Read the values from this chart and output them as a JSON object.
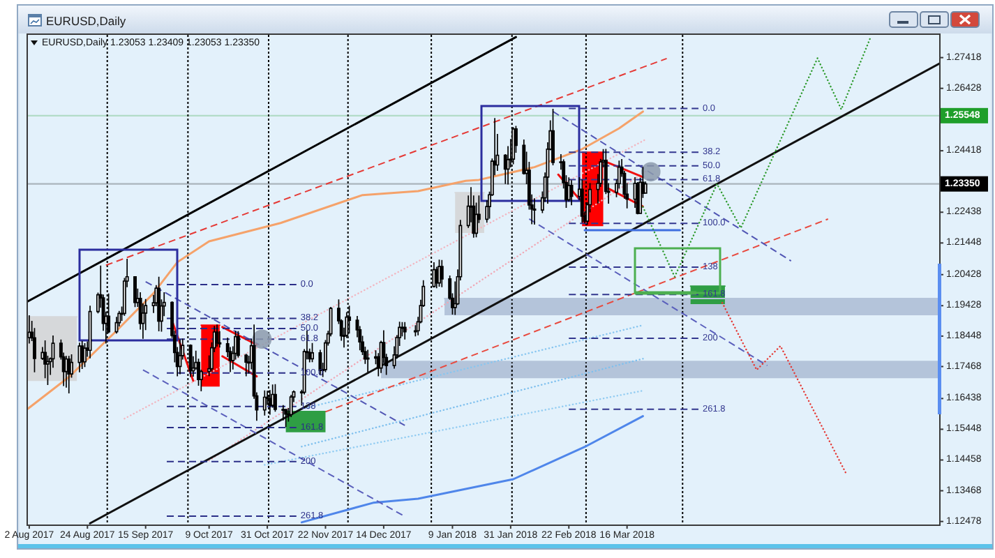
{
  "chart_data": {
    "type": "candlestick",
    "title": "EURUSD,Daily",
    "subtitle": "EURUSD,Daily 1.23053 1.23409 1.23053 1.23350",
    "xlim": [
      "2017-08-01T12:00",
      "2018-07-12"
    ],
    "xticks": [
      {
        "value": "2017-08-02",
        "label": "2 Aug 2017"
      },
      {
        "value": "2017-08-24",
        "label": "24 Aug 2017"
      },
      {
        "value": "2017-09-15",
        "label": "15 Sep 2017"
      },
      {
        "value": "2017-10-09",
        "label": "9 Oct 2017"
      },
      {
        "value": "2017-10-31",
        "label": "31 Oct 2017"
      },
      {
        "value": "2017-11-22",
        "label": "22 Nov 2017"
      },
      {
        "value": "2017-12-14",
        "label": "14 Dec 2017"
      },
      {
        "value": "2018-01-09",
        "label": "9 Jan 2018"
      },
      {
        "value": "2018-01-31",
        "label": "31 Jan 2018"
      },
      {
        "value": "2018-02-22",
        "label": "22 Feb 2018"
      },
      {
        "value": "2018-03-16",
        "label": "16 Mar 2018"
      }
    ],
    "ylim": [
      1.1238,
      1.2815
    ],
    "yticks": [
      1.12478,
      1.13468,
      1.14458,
      1.15448,
      1.16438,
      1.17468,
      1.18448,
      1.19428,
      1.20428,
      1.21448,
      1.22438,
      1.24418,
      1.26428,
      1.27418
    ],
    "ref_lines": [
      {
        "axis": "y",
        "value": 1.25548,
        "label": "1.25548",
        "color": "#1f9e2a"
      },
      {
        "axis": "y",
        "value": 1.2335,
        "label": "1.23350",
        "color": "#000000"
      },
      {
        "axis": "x",
        "value": "2017-08-31T12:00",
        "color": "#000000",
        "line_style": "dotted"
      },
      {
        "axis": "x",
        "value": "2017-10-01",
        "color": "#000000",
        "line_style": "dotted"
      },
      {
        "axis": "x",
        "value": "2017-10-31T12:00",
        "color": "#000000",
        "line_style": "dotted"
      },
      {
        "axis": "x",
        "value": "2017-11-30T12:00",
        "color": "#000000",
        "line_style": "dotted"
      },
      {
        "axis": "x",
        "value": "2018-01-01",
        "color": "#000000",
        "line_style": "dotted"
      },
      {
        "axis": "x",
        "value": "2018-01-31T12:00",
        "color": "#000000",
        "line_style": "dotted"
      },
      {
        "axis": "x",
        "value": "2018-02-28T12:00",
        "color": "#000000",
        "line_style": "dotted"
      },
      {
        "axis": "x",
        "value": "2018-04-06",
        "color": "#000000",
        "line_style": "dotted"
      }
    ],
    "x": [
      "2017-08-02",
      "2017-08-03",
      "2017-08-04",
      "2017-08-07",
      "2017-08-08",
      "2017-08-09",
      "2017-08-10",
      "2017-08-11",
      "2017-08-14",
      "2017-08-15",
      "2017-08-16",
      "2017-08-17",
      "2017-08-18",
      "2017-08-21",
      "2017-08-22",
      "2017-08-23",
      "2017-08-24",
      "2017-08-25",
      "2017-08-28",
      "2017-08-29",
      "2017-08-30",
      "2017-08-31",
      "2017-09-01",
      "2017-09-04",
      "2017-09-05",
      "2017-09-06",
      "2017-09-07",
      "2017-09-08",
      "2017-09-11",
      "2017-09-12",
      "2017-09-13",
      "2017-09-14",
      "2017-09-15",
      "2017-09-18",
      "2017-09-19",
      "2017-09-20",
      "2017-09-21",
      "2017-09-22",
      "2017-09-25",
      "2017-09-26",
      "2017-09-27",
      "2017-09-28",
      "2017-09-29",
      "2017-10-02",
      "2017-10-03",
      "2017-10-04",
      "2017-10-05",
      "2017-10-06",
      "2017-10-09",
      "2017-10-10",
      "2017-10-11",
      "2017-10-12",
      "2017-10-13",
      "2017-10-16",
      "2017-10-17",
      "2017-10-18",
      "2017-10-19",
      "2017-10-20",
      "2017-10-23",
      "2017-10-24",
      "2017-10-25",
      "2017-10-26",
      "2017-10-27",
      "2017-10-30",
      "2017-10-31",
      "2017-11-01",
      "2017-11-02",
      "2017-11-03",
      "2017-11-06",
      "2017-11-07",
      "2017-11-08",
      "2017-11-09",
      "2017-11-10",
      "2017-11-13",
      "2017-11-14",
      "2017-11-15",
      "2017-11-16",
      "2017-11-17",
      "2017-11-20",
      "2017-11-21",
      "2017-11-22",
      "2017-11-23",
      "2017-11-24",
      "2017-11-27",
      "2017-11-28",
      "2017-11-29",
      "2017-11-30",
      "2017-12-01",
      "2017-12-04",
      "2017-12-05",
      "2017-12-06",
      "2017-12-07",
      "2017-12-08",
      "2017-12-11",
      "2017-12-12",
      "2017-12-13",
      "2017-12-14",
      "2017-12-15",
      "2017-12-18",
      "2017-12-19",
      "2017-12-20",
      "2017-12-21",
      "2017-12-22",
      "2017-12-26",
      "2017-12-27",
      "2017-12-28",
      "2017-12-29",
      "2018-01-02",
      "2018-01-03",
      "2018-01-04",
      "2018-01-05",
      "2018-01-08",
      "2018-01-09",
      "2018-01-10",
      "2018-01-11",
      "2018-01-12",
      "2018-01-15",
      "2018-01-16",
      "2018-01-17",
      "2018-01-18",
      "2018-01-19",
      "2018-01-22",
      "2018-01-23",
      "2018-01-24",
      "2018-01-25",
      "2018-01-26",
      "2018-01-29",
      "2018-01-30",
      "2018-01-31",
      "2018-02-01",
      "2018-02-02",
      "2018-02-05",
      "2018-02-06",
      "2018-02-07",
      "2018-02-08",
      "2018-02-09",
      "2018-02-12",
      "2018-02-13",
      "2018-02-14",
      "2018-02-15",
      "2018-02-16",
      "2018-02-19",
      "2018-02-20",
      "2018-02-21",
      "2018-02-22",
      "2018-02-23",
      "2018-02-26",
      "2018-02-27",
      "2018-02-28",
      "2018-03-01",
      "2018-03-02",
      "2018-03-05",
      "2018-03-06",
      "2018-03-07",
      "2018-03-08",
      "2018-03-09",
      "2018-03-12",
      "2018-03-13",
      "2018-03-14",
      "2018-03-15",
      "2018-03-16",
      "2018-03-19",
      "2018-03-20",
      "2018-03-21",
      "2018-03-22",
      "2018-03-23"
    ],
    "ohlc": [
      [
        1.184,
        1.191,
        1.1823,
        1.1857
      ],
      [
        1.1857,
        1.1892,
        1.1831,
        1.1839
      ],
      [
        1.1839,
        1.1869,
        1.173,
        1.1773
      ],
      [
        1.1773,
        1.1808,
        1.177,
        1.1792
      ],
      [
        1.1792,
        1.1829,
        1.1711,
        1.1755
      ],
      [
        1.1755,
        1.178,
        1.1689,
        1.1763
      ],
      [
        1.1763,
        1.1774,
        1.1722,
        1.1772
      ],
      [
        1.1772,
        1.1845,
        1.1745,
        1.1822
      ],
      [
        1.1822,
        1.1832,
        1.1771,
        1.1778
      ],
      [
        1.1778,
        1.179,
        1.1686,
        1.1731
      ],
      [
        1.1731,
        1.1779,
        1.1681,
        1.1771
      ],
      [
        1.1771,
        1.1779,
        1.1662,
        1.1723
      ],
      [
        1.1723,
        1.1784,
        1.1713,
        1.176
      ],
      [
        1.176,
        1.1822,
        1.173,
        1.1813
      ],
      [
        1.1813,
        1.1827,
        1.1741,
        1.1762
      ],
      [
        1.1762,
        1.182,
        1.1747,
        1.1806
      ],
      [
        1.1806,
        1.1826,
        1.178,
        1.1799
      ],
      [
        1.1799,
        1.1941,
        1.1775,
        1.1924
      ],
      [
        1.1924,
        1.1983,
        1.192,
        1.1978
      ],
      [
        1.1978,
        1.207,
        1.1938,
        1.1968
      ],
      [
        1.1968,
        1.1977,
        1.1864,
        1.1886
      ],
      [
        1.1886,
        1.1922,
        1.1823,
        1.1909
      ],
      [
        1.1909,
        1.198,
        1.1856,
        1.1859
      ],
      [
        1.1859,
        1.1905,
        1.1855,
        1.1888
      ],
      [
        1.1888,
        1.1924,
        1.1878,
        1.1918
      ],
      [
        1.1918,
        1.1938,
        1.1896,
        1.1918
      ],
      [
        1.1918,
        1.203,
        1.1912,
        1.2022
      ],
      [
        1.2022,
        1.2092,
        1.2004,
        1.2036
      ],
      [
        1.2036,
        1.2036,
        1.194,
        1.1953
      ],
      [
        1.1953,
        1.1996,
        1.1941,
        1.1966
      ],
      [
        1.1966,
        1.1984,
        1.1868,
        1.1886
      ],
      [
        1.1886,
        1.1948,
        1.1838,
        1.1919
      ],
      [
        1.1919,
        1.1962,
        1.1866,
        1.1943
      ],
      [
        1.1943,
        1.1976,
        1.1921,
        1.1952
      ],
      [
        1.1952,
        1.2007,
        1.1943,
        1.1999
      ],
      [
        1.1999,
        1.2034,
        1.1862,
        1.1893
      ],
      [
        1.1893,
        1.1961,
        1.1861,
        1.1942
      ],
      [
        1.1942,
        1.1984,
        1.1911,
        1.1953
      ],
      [
        1.1953,
        1.1955,
        1.1841,
        1.1847
      ],
      [
        1.1847,
        1.186,
        1.1762,
        1.1792
      ],
      [
        1.1792,
        1.1808,
        1.1717,
        1.1747
      ],
      [
        1.1747,
        1.1832,
        1.1724,
        1.1782
      ],
      [
        1.1782,
        1.1835,
        1.1771,
        1.1815
      ],
      [
        1.1815,
        1.1816,
        1.1715,
        1.1733
      ],
      [
        1.1733,
        1.1778,
        1.1716,
        1.1742
      ],
      [
        1.1742,
        1.1796,
        1.1738,
        1.176
      ],
      [
        1.176,
        1.177,
        1.1687,
        1.1705
      ],
      [
        1.1705,
        1.1735,
        1.1669,
        1.1731
      ],
      [
        1.1731,
        1.1781,
        1.1718,
        1.174
      ],
      [
        1.174,
        1.1823,
        1.1733,
        1.1807
      ],
      [
        1.1807,
        1.1876,
        1.1795,
        1.1858
      ],
      [
        1.1858,
        1.188,
        1.1813,
        1.1823
      ],
      [
        1.1823,
        1.1859,
        1.181,
        1.182
      ],
      [
        1.182,
        1.1838,
        1.1779,
        1.1795
      ],
      [
        1.1795,
        1.1808,
        1.1731,
        1.1766
      ],
      [
        1.1766,
        1.181,
        1.1739,
        1.1789
      ],
      [
        1.1789,
        1.186,
        1.1771,
        1.1843
      ],
      [
        1.1843,
        1.1859,
        1.1778,
        1.1783
      ],
      [
        1.1783,
        1.1786,
        1.1717,
        1.1761
      ],
      [
        1.1761,
        1.178,
        1.1726,
        1.176
      ],
      [
        1.176,
        1.1834,
        1.174,
        1.1814
      ],
      [
        1.1814,
        1.188,
        1.1645,
        1.1652
      ],
      [
        1.1652,
        1.1662,
        1.1574,
        1.1607
      ],
      [
        1.1607,
        1.1668,
        1.1591,
        1.1648
      ],
      [
        1.1648,
        1.1667,
        1.1625,
        1.1644
      ],
      [
        1.1644,
        1.1669,
        1.1594,
        1.1622
      ],
      [
        1.1622,
        1.1687,
        1.1616,
        1.1657
      ],
      [
        1.1657,
        1.1688,
        1.1603,
        1.1609
      ],
      [
        1.1609,
        1.1621,
        1.1575,
        1.1608
      ],
      [
        1.1608,
        1.1609,
        1.1554,
        1.1594
      ],
      [
        1.1594,
        1.1611,
        1.1571,
        1.1592
      ],
      [
        1.1592,
        1.1654,
        1.1586,
        1.1649
      ],
      [
        1.1649,
        1.1668,
        1.1634,
        1.1665
      ],
      [
        1.1665,
        1.167,
        1.1623,
        1.1664
      ],
      [
        1.1664,
        1.1801,
        1.1659,
        1.1795
      ],
      [
        1.1795,
        1.1861,
        1.1772,
        1.1792
      ],
      [
        1.1792,
        1.1803,
        1.1762,
        1.1772
      ],
      [
        1.1772,
        1.1821,
        1.1763,
        1.1791
      ],
      [
        1.1791,
        1.1799,
        1.1722,
        1.1734
      ],
      [
        1.1734,
        1.1757,
        1.1715,
        1.1737
      ],
      [
        1.1737,
        1.183,
        1.1731,
        1.1823
      ],
      [
        1.1823,
        1.186,
        1.1816,
        1.1852
      ],
      [
        1.1852,
        1.1937,
        1.1846,
        1.1934
      ],
      [
        1.1934,
        1.1961,
        1.1886,
        1.1894
      ],
      [
        1.1894,
        1.1897,
        1.1832,
        1.1846
      ],
      [
        1.1846,
        1.187,
        1.181,
        1.1847
      ],
      [
        1.1847,
        1.192,
        1.1841,
        1.1906
      ],
      [
        1.1906,
        1.1941,
        1.1855,
        1.1896
      ],
      [
        1.1896,
        1.1908,
        1.1843,
        1.1865
      ],
      [
        1.1865,
        1.1875,
        1.1801,
        1.1826
      ],
      [
        1.1826,
        1.1844,
        1.1786,
        1.1795
      ],
      [
        1.1795,
        1.1809,
        1.1757,
        1.1771
      ],
      [
        1.1771,
        1.1799,
        1.173,
        1.1774
      ],
      [
        1.1774,
        1.1797,
        1.1756,
        1.1778
      ],
      [
        1.1778,
        1.1788,
        1.1717,
        1.1742
      ],
      [
        1.1742,
        1.1828,
        1.1728,
        1.1824
      ],
      [
        1.1824,
        1.1862,
        1.176,
        1.1776
      ],
      [
        1.1776,
        1.1786,
        1.1722,
        1.175
      ],
      [
        1.175,
        1.181,
        1.1742,
        1.1784
      ],
      [
        1.1784,
        1.1846,
        1.1774,
        1.184
      ],
      [
        1.184,
        1.1889,
        1.1815,
        1.1873
      ],
      [
        1.1873,
        1.1888,
        1.1846,
        1.1873
      ],
      [
        1.1873,
        1.1888,
        1.1836,
        1.1859
      ],
      [
        1.1859,
        1.1878,
        1.1846,
        1.1862
      ],
      [
        1.1862,
        1.1905,
        1.1849,
        1.1891
      ],
      [
        1.1891,
        1.196,
        1.1888,
        1.1943
      ],
      [
        1.1943,
        1.2023,
        1.1941,
        1.2005
      ],
      [
        1.2005,
        1.2081,
        1.2003,
        1.2059
      ],
      [
        1.2059,
        1.2066,
        1.2001,
        1.2016
      ],
      [
        1.2016,
        1.2089,
        1.2006,
        1.2069
      ],
      [
        1.2069,
        1.2088,
        1.2004,
        1.2029
      ],
      [
        1.2029,
        1.2038,
        1.1964,
        1.1967
      ],
      [
        1.1967,
        1.1981,
        1.1916,
        1.1937
      ],
      [
        1.1937,
        1.2019,
        1.1915,
        1.1949
      ],
      [
        1.1949,
        1.2058,
        1.1947,
        1.2036
      ],
      [
        1.2036,
        1.2217,
        1.2026,
        1.2201
      ],
      [
        1.2201,
        1.2296,
        1.2195,
        1.2263
      ],
      [
        1.2263,
        1.2323,
        1.2213,
        1.2263
      ],
      [
        1.2263,
        1.2296,
        1.2164,
        1.2176
      ],
      [
        1.2176,
        1.2273,
        1.2165,
        1.2237
      ],
      [
        1.2237,
        1.2296,
        1.2211,
        1.2221
      ],
      [
        1.2221,
        1.228,
        1.2212,
        1.2262
      ],
      [
        1.2262,
        1.2308,
        1.2225,
        1.23
      ],
      [
        1.23,
        1.2415,
        1.2298,
        1.2408
      ],
      [
        1.2408,
        1.2545,
        1.2365,
        1.2396
      ],
      [
        1.2396,
        1.2494,
        1.2379,
        1.2427
      ],
      [
        1.2427,
        1.2429,
        1.2337,
        1.2383
      ],
      [
        1.2383,
        1.2455,
        1.2335,
        1.2413
      ],
      [
        1.2413,
        1.2478,
        1.239,
        1.2415
      ],
      [
        1.2415,
        1.2516,
        1.24,
        1.2512
      ],
      [
        1.2512,
        1.252,
        1.2437,
        1.2459
      ],
      [
        1.2459,
        1.2476,
        1.2367,
        1.2369
      ],
      [
        1.2369,
        1.2437,
        1.2336,
        1.2379
      ],
      [
        1.2379,
        1.2404,
        1.2254,
        1.2267
      ],
      [
        1.2267,
        1.2299,
        1.2207,
        1.2254
      ],
      [
        1.2254,
        1.2287,
        1.2206,
        1.2251
      ],
      [
        1.2251,
        1.2309,
        1.2243,
        1.229
      ],
      [
        1.229,
        1.237,
        1.2279,
        1.2357
      ],
      [
        1.2357,
        1.2467,
        1.2273,
        1.2447
      ],
      [
        1.2447,
        1.2538,
        1.2445,
        1.2506
      ],
      [
        1.2506,
        1.2575,
        1.2397,
        1.2404
      ],
      [
        1.2404,
        1.2429,
        1.2383,
        1.2406
      ],
      [
        1.2406,
        1.2412,
        1.2322,
        1.2339
      ],
      [
        1.2339,
        1.2361,
        1.226,
        1.2284
      ],
      [
        1.2284,
        1.2354,
        1.228,
        1.233
      ],
      [
        1.233,
        1.2345,
        1.2268,
        1.2295
      ],
      [
        1.2295,
        1.2355,
        1.2285,
        1.2318
      ],
      [
        1.2318,
        1.2347,
        1.2212,
        1.2231
      ],
      [
        1.2231,
        1.2244,
        1.221,
        1.2215
      ],
      [
        1.2215,
        1.2274,
        1.2205,
        1.2268
      ],
      [
        1.2268,
        1.2336,
        1.2245,
        1.2317
      ],
      [
        1.2317,
        1.2365,
        1.2274,
        1.2337
      ],
      [
        1.2337,
        1.2414,
        1.2327,
        1.2406
      ],
      [
        1.2406,
        1.2445,
        1.239,
        1.2411
      ],
      [
        1.2411,
        1.2446,
        1.2304,
        1.2311
      ],
      [
        1.2311,
        1.2336,
        1.2273,
        1.2308
      ],
      [
        1.2308,
        1.2347,
        1.2294,
        1.2336
      ],
      [
        1.2336,
        1.2408,
        1.2322,
        1.2389
      ],
      [
        1.2389,
        1.2413,
        1.236,
        1.2369
      ],
      [
        1.2369,
        1.2375,
        1.2289,
        1.2302
      ],
      [
        1.2302,
        1.2336,
        1.2258,
        1.2286
      ],
      [
        1.2286,
        1.2355,
        1.226,
        1.2337
      ],
      [
        1.2337,
        1.2339,
        1.2239,
        1.224
      ],
      [
        1.224,
        1.2353,
        1.224,
        1.234
      ],
      [
        1.234,
        1.2388,
        1.2292,
        1.2305
      ],
      [
        1.23053,
        1.23409,
        1.23053,
        1.2335
      ]
    ],
    "series": [
      {
        "type": "line",
        "x": [
          "2017-08-01T12:00",
          "2017-08-20"
        ],
        "values": [
          1.1907,
          1.1907
        ],
        "lower": [
          1.17,
          1.17
        ],
        "upper": [
          1.1907,
          1.1907
        ],
        "color": "#d6d8da"
      },
      {
        "type": "line",
        "x": [
          "2018-01-10",
          "2018-01-21"
        ],
        "values": [
          1.2307,
          1.2307
        ],
        "lower": [
          1.2177,
          1.2177
        ],
        "upper": [
          1.2307,
          1.2307
        ],
        "color": "#d6d8da"
      },
      {
        "type": "line",
        "x": [
          "2018-01-06",
          "2018-07-12"
        ],
        "values": [
          1.1966,
          1.1966
        ],
        "lower": [
          1.1912,
          1.1912
        ],
        "upper": [
          1.1966,
          1.1966
        ],
        "color": "#b4c4da"
      },
      {
        "type": "line",
        "x": [
          "2017-12-13",
          "2018-07-12"
        ],
        "values": [
          1.1763,
          1.1763
        ],
        "lower": [
          1.1709,
          1.1709
        ],
        "upper": [
          1.1763,
          1.1763
        ],
        "color": "#b4c4da"
      },
      {
        "type": "line",
        "x": [
          "2017-10-06",
          "2017-10-13"
        ],
        "values": [
          1.188,
          1.188
        ],
        "lower": [
          1.1682,
          1.1682
        ],
        "upper": [
          1.188,
          1.188
        ],
        "color": "#ff0000"
      },
      {
        "type": "line",
        "x": [
          "2018-02-27",
          "2018-03-07"
        ],
        "values": [
          1.2437,
          1.2437
        ],
        "lower": [
          1.2199,
          1.2199
        ],
        "upper": [
          1.2437,
          1.2437
        ],
        "color": "#ff0000"
      },
      {
        "type": "line",
        "x": [
          "2017-11-07",
          "2017-11-22"
        ],
        "values": [
          1.1602,
          1.1602
        ],
        "lower": [
          1.1535,
          1.1535
        ],
        "upper": [
          1.1602,
          1.1602
        ],
        "color": "#2f9e44"
      },
      {
        "type": "line",
        "x": [
          "2018-04-09",
          "2018-04-22"
        ],
        "values": [
          1.2006,
          1.2006
        ],
        "lower": [
          1.1948,
          1.1948
        ],
        "upper": [
          1.2006,
          1.2006
        ],
        "color": "#2f9e44"
      },
      {
        "type": "line",
        "x": [
          "2017-09-07",
          "2018-03-23"
        ],
        "values": [
          1.1579,
          1.2478
        ],
        "color": "#f2b6c0",
        "line_style": "dotted"
      },
      {
        "type": "line",
        "x": [
          "2017-10-09",
          "2018-03-23"
        ],
        "values": [
          1.1444,
          1.2375
        ],
        "color": "#f0a9b6",
        "line_style": "dotted"
      },
      {
        "type": "line",
        "x": [
          "2017-11-13",
          "2018-03-22"
        ],
        "values": [
          1.161,
          1.188
        ],
        "color": "#88c6f0",
        "line_style": "dotted"
      },
      {
        "type": "line",
        "x": [
          "2017-11-13",
          "2018-03-22"
        ],
        "values": [
          1.1489,
          1.1772
        ],
        "color": "#7fc0ee",
        "line_style": "dotted"
      },
      {
        "type": "line",
        "x": [
          "2017-10-30",
          "2018-03-22"
        ],
        "values": [
          1.143,
          1.1669
        ],
        "color": "#92ccf2",
        "line_style": "dotted"
      },
      {
        "type": "line",
        "x": [
          "2017-08-01T12:00",
          "2018-02-02"
        ],
        "values": [
          1.1957,
          1.2808
        ],
        "color": "#000000",
        "line_style": "solid"
      },
      {
        "type": "line",
        "x": [
          "2017-08-25",
          "2018-07-12"
        ],
        "values": [
          1.1242,
          1.2722
        ],
        "color": "#111111",
        "line_style": "solid"
      },
      {
        "type": "line",
        "x": [
          "2017-08-31",
          "2018-03-31"
        ],
        "values": [
          1.2073,
          1.2739
        ],
        "color": "#e53935",
        "line_style": "dashed"
      },
      {
        "type": "line",
        "x": [
          "2017-11-22",
          "2018-05-31"
        ],
        "values": [
          1.1601,
          1.2222
        ],
        "color": "#e84a3f",
        "line_style": "dashed"
      },
      {
        "type": "line",
        "x": [
          "2017-08-01T12:00",
          "2017-08-17",
          "2017-09-04",
          "2017-09-18",
          "2017-09-27",
          "2017-10-09",
          "2017-11-05",
          "2017-12-06",
          "2017-12-27",
          "2018-01-14",
          "2018-01-19",
          "2018-02-09",
          "2018-02-27",
          "2018-03-13",
          "2018-03-22"
        ],
        "values": [
          1.1611,
          1.1713,
          1.1862,
          1.1983,
          1.2083,
          1.215,
          1.2209,
          1.2299,
          1.2312,
          1.2345,
          1.2348,
          1.2389,
          1.2447,
          1.2514,
          1.2568
        ],
        "color": "#f5a26a",
        "line_style": "solid"
      },
      {
        "type": "line",
        "x": [
          "2017-11-13",
          "2017-12-10",
          "2017-12-27",
          "2018-02-01",
          "2018-02-28",
          "2018-03-22"
        ],
        "values": [
          1.1245,
          1.1308,
          1.1321,
          1.1384,
          1.1488,
          1.1587
        ],
        "color": "#4f86ea",
        "line_style": "solid"
      },
      {
        "type": "line",
        "x": [
          "2017-09-15",
          "2017-12-22"
        ],
        "values": [
          1.202,
          1.1557
        ],
        "color": "#5156b4",
        "line_style": "dashed"
      },
      {
        "type": "line",
        "x": [
          "2018-02-16",
          "2018-05-17"
        ],
        "values": [
          1.2568,
          1.2087
        ],
        "color": "#5156b4",
        "line_style": "dashed"
      },
      {
        "type": "line",
        "x": [
          "2018-02-07",
          "2018-05-08"
        ],
        "values": [
          1.2222,
          1.175
        ],
        "color": "#5a5fbc",
        "line_style": "dashed"
      },
      {
        "type": "line",
        "x": [
          "2017-09-14",
          "2017-12-22"
        ],
        "values": [
          1.1736,
          1.1264
        ],
        "color": "#5a5fbc",
        "line_style": "dashed"
      },
      {
        "type": "line",
        "x": [
          "2017-09-25",
          "2017-10-03"
        ],
        "values": [
          1.1894,
          1.1701
        ],
        "color": "#f01010",
        "line_style": "solid"
      },
      {
        "type": "line",
        "x": [
          "2017-10-14",
          "2017-10-27"
        ],
        "values": [
          1.1874,
          1.1817
        ],
        "color": "#f01010",
        "line_style": "solid"
      },
      {
        "type": "line",
        "x": [
          "2017-10-14",
          "2017-10-27"
        ],
        "values": [
          1.178,
          1.1715
        ],
        "color": "#f01010",
        "line_style": "solid"
      },
      {
        "type": "line",
        "x": [
          "2018-02-18",
          "2018-02-27"
        ],
        "values": [
          1.2365,
          1.2276
        ],
        "color": "#f01010",
        "line_style": "solid"
      },
      {
        "type": "line",
        "x": [
          "2018-03-07",
          "2018-03-22"
        ],
        "values": [
          1.241,
          1.2357
        ],
        "color": "#f01010",
        "line_style": "solid"
      },
      {
        "type": "line",
        "x": [
          "2018-03-09",
          "2018-03-22"
        ],
        "values": [
          1.232,
          1.2262
        ],
        "color": "#f01010",
        "line_style": "solid"
      },
      {
        "type": "line",
        "x": [
          "2018-02-28",
          "2018-04-05"
        ],
        "values": [
          1.2186,
          1.2186
        ],
        "color": "#3f6fe0",
        "line_style": "solid"
      },
      {
        "type": "line",
        "x": [
          "2018-03-22",
          "2018-04-03",
          "2018-04-19",
          "2018-04-28",
          "2018-05-27",
          "2018-06-05",
          "2018-06-16"
        ],
        "values": [
          1.2261,
          1.2036,
          1.2335,
          1.2193,
          1.274,
          1.2575,
          1.2806
        ],
        "color": "#2e9b2e",
        "line_style": "dotted"
      },
      {
        "type": "line",
        "x": [
          "2018-04-21",
          "2018-05-04",
          "2018-05-13",
          "2018-06-07"
        ],
        "values": [
          1.1952,
          1.1736,
          1.1813,
          1.1399
        ],
        "color": "#e53935",
        "line_style": "dotted"
      },
      {
        "type": "line",
        "name": "0.0",
        "x": [
          "2018-02-22",
          "2018-04-12"
        ],
        "values": [
          1.2578,
          1.2578
        ],
        "color": "#33378f",
        "line_style": "dashed"
      },
      {
        "type": "line",
        "name": "38.2",
        "x": [
          "2018-02-22",
          "2018-04-12"
        ],
        "values": [
          1.2437,
          1.2437
        ],
        "color": "#33378f",
        "line_style": "dashed"
      },
      {
        "type": "line",
        "name": "50.0",
        "x": [
          "2018-02-22",
          "2018-04-12"
        ],
        "values": [
          1.2393,
          1.2393
        ],
        "color": "#33378f",
        "line_style": "dashed"
      },
      {
        "type": "line",
        "name": "61.8",
        "x": [
          "2018-02-22",
          "2018-04-12"
        ],
        "values": [
          1.2349,
          1.2349
        ],
        "color": "#33378f",
        "line_style": "dashed"
      },
      {
        "type": "line",
        "name": "100.0",
        "x": [
          "2018-02-22",
          "2018-04-12"
        ],
        "values": [
          1.2208,
          1.2208
        ],
        "color": "#33378f",
        "line_style": "dashed"
      },
      {
        "type": "line",
        "name": "138",
        "x": [
          "2018-02-22",
          "2018-04-12"
        ],
        "values": [
          1.2067,
          1.2067
        ],
        "color": "#33378f",
        "line_style": "dashed"
      },
      {
        "type": "line",
        "name": "161.8",
        "x": [
          "2018-02-22",
          "2018-04-12"
        ],
        "values": [
          1.1979,
          1.1979
        ],
        "color": "#33378f",
        "line_style": "dashed"
      },
      {
        "type": "line",
        "name": "200",
        "x": [
          "2018-02-22",
          "2018-04-12"
        ],
        "values": [
          1.1838,
          1.1838
        ],
        "color": "#33378f",
        "line_style": "dashed"
      },
      {
        "type": "line",
        "name": "261.8",
        "x": [
          "2018-02-22",
          "2018-04-12"
        ],
        "values": [
          1.1609,
          1.1609
        ],
        "color": "#33378f",
        "line_style": "dashed"
      },
      {
        "type": "line",
        "name": "0.0",
        "x": [
          "2017-09-23",
          "2017-11-11"
        ],
        "values": [
          1.2011,
          1.2011
        ],
        "color": "#2b2f88",
        "line_style": "dashed"
      },
      {
        "type": "line",
        "name": "38.2",
        "x": [
          "2017-09-23",
          "2017-11-11"
        ],
        "values": [
          1.1902,
          1.1902
        ],
        "color": "#2b2f88",
        "line_style": "dashed"
      },
      {
        "type": "line",
        "name": "50.0",
        "x": [
          "2017-09-23",
          "2017-11-11"
        ],
        "values": [
          1.1869,
          1.1869
        ],
        "color": "#2b2f88",
        "line_style": "dashed"
      },
      {
        "type": "line",
        "name": "61.8",
        "x": [
          "2017-09-23",
          "2017-11-11"
        ],
        "values": [
          1.1835,
          1.1835
        ],
        "color": "#2b2f88",
        "line_style": "dashed"
      },
      {
        "type": "line",
        "name": "100.0",
        "x": [
          "2017-09-23",
          "2017-11-11"
        ],
        "values": [
          1.1726,
          1.1726
        ],
        "color": "#2b2f88",
        "line_style": "dashed"
      },
      {
        "type": "line",
        "name": "138",
        "x": [
          "2017-09-23",
          "2017-11-11"
        ],
        "values": [
          1.1618,
          1.1618
        ],
        "color": "#2b2f88",
        "line_style": "dashed"
      },
      {
        "type": "line",
        "name": "161.8",
        "x": [
          "2017-09-23",
          "2017-11-11"
        ],
        "values": [
          1.155,
          1.155
        ],
        "color": "#2b2f88",
        "line_style": "dashed"
      },
      {
        "type": "line",
        "name": "200",
        "x": [
          "2017-09-23",
          "2017-11-11"
        ],
        "values": [
          1.1441,
          1.1441
        ],
        "color": "#2b2f88",
        "line_style": "dashed"
      },
      {
        "type": "line",
        "name": "261.8",
        "x": [
          "2017-09-23",
          "2017-11-11"
        ],
        "values": [
          1.1265,
          1.1265
        ],
        "color": "#2b2f88",
        "line_style": "dashed"
      },
      {
        "type": "scatter",
        "x": [
          "2017-10-29",
          "2018-03-25"
        ],
        "values": [
          1.1835,
          1.2374
        ],
        "color": "#8c9aab",
        "marker": "circle"
      }
    ]
  }
}
